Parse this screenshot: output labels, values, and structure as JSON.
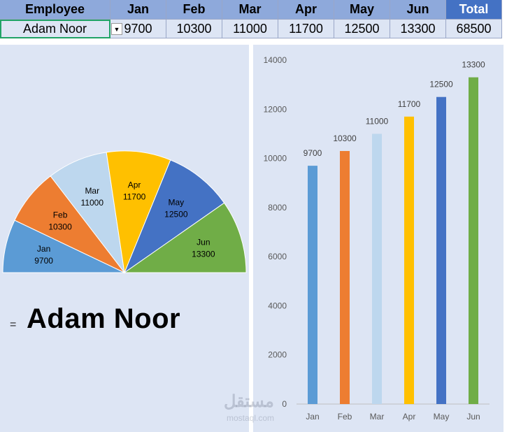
{
  "table": {
    "headers": [
      "Employee",
      "Jan",
      "Feb",
      "Mar",
      "Apr",
      "May",
      "Jun",
      "Total"
    ],
    "row": [
      "Adam Noor",
      "9700",
      "10300",
      "11000",
      "11700",
      "12500",
      "13300",
      "68500"
    ]
  },
  "selected_employee": "Adam Noor",
  "eq_sign": "=",
  "watermark": {
    "main": "مستقل",
    "sub": "mostaql.com"
  },
  "colors": {
    "Jan": "#5b9bd5",
    "Feb": "#ed7d31",
    "Mar": "#bdd7ee",
    "Apr": "#ffc000",
    "May": "#4472c4",
    "Jun": "#70ad47"
  },
  "chart_data": [
    {
      "type": "pie",
      "title": "",
      "categories": [
        "Jan",
        "Feb",
        "Mar",
        "Apr",
        "May",
        "Jun"
      ],
      "values": [
        9700,
        10300,
        11000,
        11700,
        12500,
        13300
      ],
      "shape": "half-donut"
    },
    {
      "type": "bar",
      "title": "",
      "categories": [
        "Jan",
        "Feb",
        "Mar",
        "Apr",
        "May",
        "Jun"
      ],
      "values": [
        9700,
        10300,
        11000,
        11700,
        12500,
        13300
      ],
      "ylim": [
        0,
        14000
      ],
      "yticks": [
        0,
        2000,
        4000,
        6000,
        8000,
        10000,
        12000,
        14000
      ],
      "grid": false,
      "legend": "none",
      "xlabel": "",
      "ylabel": ""
    }
  ]
}
